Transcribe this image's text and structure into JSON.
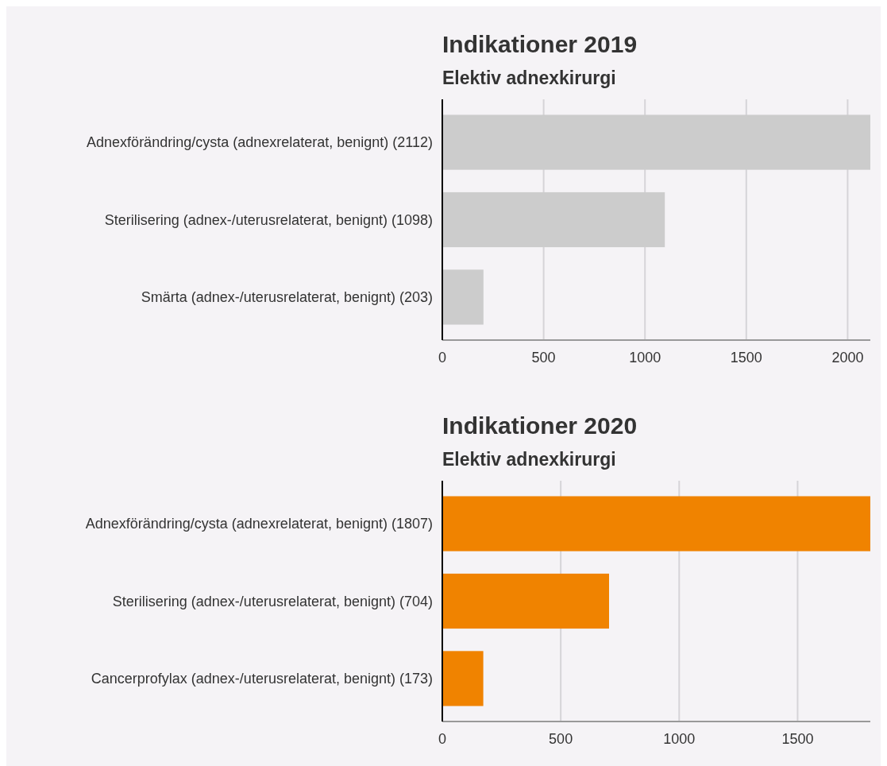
{
  "chart_data": [
    {
      "type": "bar",
      "orientation": "horizontal",
      "title": "Indikationer 2019",
      "subtitle": "Elektiv adnexkirurgi",
      "categories": [
        "Adnexförändring/cysta (adnexrelaterat, benignt) (2112)",
        "Sterilisering (adnex-/uterusrelaterat, benignt) (1098)",
        "Smärta (adnex-/uterusrelaterat, benignt) (203)"
      ],
      "values": [
        2112,
        1098,
        203
      ],
      "color": "#cccccc",
      "xlim": [
        0,
        2112
      ],
      "xticks": [
        0,
        500,
        1000,
        1500,
        2000
      ],
      "grid": "x"
    },
    {
      "type": "bar",
      "orientation": "horizontal",
      "title": "Indikationer 2020",
      "subtitle": "Elektiv adnexkirurgi",
      "categories": [
        "Adnexförändring/cysta (adnexrelaterat, benignt) (1807)",
        "Sterilisering (adnex-/uterusrelaterat, benignt) (704)",
        "Cancerprofylax (adnex-/uterusrelaterat, benignt) (173)"
      ],
      "values": [
        1807,
        704,
        173
      ],
      "color": "#f08300",
      "xlim": [
        0,
        1807
      ],
      "xticks": [
        0,
        500,
        1000,
        1500
      ],
      "grid": "x"
    }
  ]
}
